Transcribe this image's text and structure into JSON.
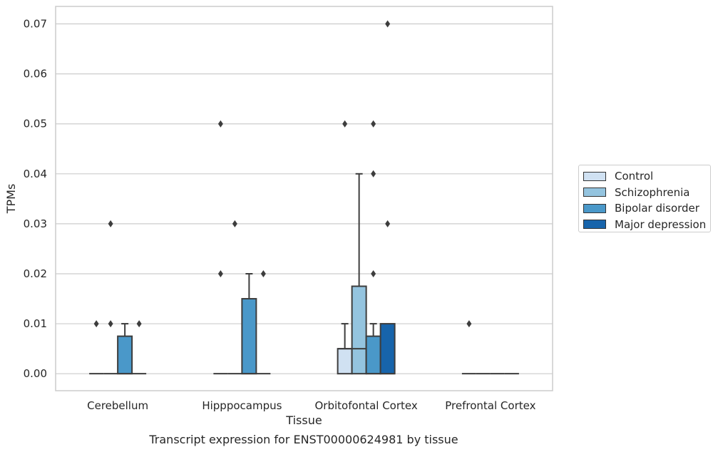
{
  "chart_data": {
    "type": "box",
    "title": "Transcript expression for ENST00000624981 by tissue",
    "xlabel": "Tissue",
    "ylabel": "TPMs",
    "ylim": [
      -0.0034,
      0.0735
    ],
    "yticks": [
      0.0,
      0.01,
      0.02,
      0.03,
      0.04,
      0.05,
      0.06,
      0.07
    ],
    "ytick_labels": [
      "0.00",
      "0.01",
      "0.02",
      "0.03",
      "0.04",
      "0.05",
      "0.06",
      "0.07"
    ],
    "grid": "horizontal",
    "legend_position": "right",
    "categories": [
      "Cerebellum",
      "Hipppocampus",
      "Orbitofontal Cortex",
      "Prefrontal Cortex"
    ],
    "series": [
      {
        "name": "Control",
        "color": "#d0e1f2",
        "boxes": [
          {
            "q1": 0,
            "median": 0,
            "q3": 0,
            "whisker_low": 0,
            "whisker_high": 0,
            "outliers": [
              0.01
            ]
          },
          {
            "q1": 0,
            "median": 0,
            "q3": 0,
            "whisker_low": 0,
            "whisker_high": 0,
            "outliers": [
              0.05,
              0.02
            ]
          },
          {
            "q1": 0,
            "median": 0.005,
            "q3": 0.005,
            "whisker_low": 0,
            "whisker_high": 0.01,
            "outliers": [
              0.05
            ]
          },
          {
            "q1": 0,
            "median": 0,
            "q3": 0,
            "whisker_low": 0,
            "whisker_high": 0,
            "outliers": [
              0.01
            ]
          }
        ]
      },
      {
        "name": "Schizophrenia",
        "color": "#94c4df",
        "boxes": [
          {
            "q1": 0,
            "median": 0,
            "q3": 0,
            "whisker_low": 0,
            "whisker_high": 0,
            "outliers": [
              0.03,
              0.01
            ]
          },
          {
            "q1": 0,
            "median": 0,
            "q3": 0,
            "whisker_low": 0,
            "whisker_high": 0,
            "outliers": [
              0.03
            ]
          },
          {
            "q1": 0,
            "median": 0.005,
            "q3": 0.0175,
            "whisker_low": 0,
            "whisker_high": 0.04,
            "outliers": []
          },
          {
            "q1": 0,
            "median": 0,
            "q3": 0,
            "whisker_low": 0,
            "whisker_high": 0,
            "outliers": []
          }
        ]
      },
      {
        "name": "Bipolar disorder",
        "color": "#4a98c9",
        "boxes": [
          {
            "q1": 0,
            "median": 0,
            "q3": 0.0075,
            "whisker_low": 0,
            "whisker_high": 0.01,
            "outliers": []
          },
          {
            "q1": 0,
            "median": 0,
            "q3": 0.015,
            "whisker_low": 0,
            "whisker_high": 0.02,
            "outliers": []
          },
          {
            "q1": 0,
            "median": 0,
            "q3": 0.0075,
            "whisker_low": 0,
            "whisker_high": 0.01,
            "outliers": [
              0.05,
              0.04,
              0.02
            ]
          },
          {
            "q1": 0,
            "median": 0,
            "q3": 0,
            "whisker_low": 0,
            "whisker_high": 0,
            "outliers": []
          }
        ]
      },
      {
        "name": "Major depression",
        "color": "#1764ab",
        "boxes": [
          {
            "q1": 0,
            "median": 0,
            "q3": 0,
            "whisker_low": 0,
            "whisker_high": 0,
            "outliers": [
              0.01
            ]
          },
          {
            "q1": 0,
            "median": 0,
            "q3": 0,
            "whisker_low": 0,
            "whisker_high": 0,
            "outliers": [
              0.02
            ]
          },
          {
            "q1": 0,
            "median": 0,
            "q3": 0.01,
            "whisker_low": 0,
            "whisker_high": 0.01,
            "outliers": [
              0.07,
              0.03
            ]
          },
          {
            "q1": 0,
            "median": 0,
            "q3": 0,
            "whisker_low": 0,
            "whisker_high": 0,
            "outliers": []
          }
        ]
      }
    ]
  },
  "colors": {
    "grid": "#cccccc",
    "frame": "#cccccc",
    "box_edge": "#3d3d3d",
    "text": "#262626"
  }
}
